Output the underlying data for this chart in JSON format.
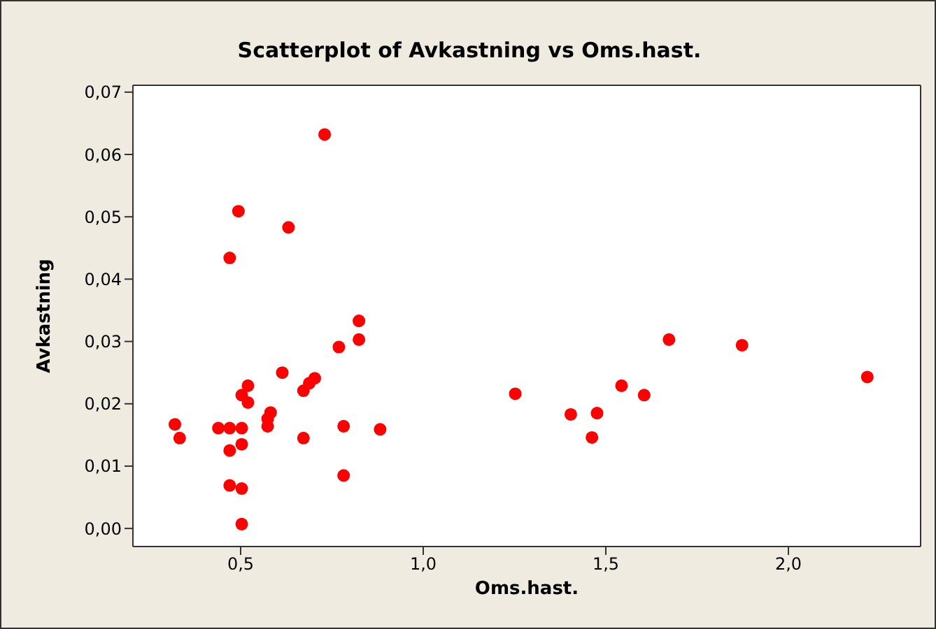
{
  "chart_data": {
    "type": "scatter",
    "title": "Scatterplot of Avkastning vs Oms.hast.",
    "xlabel": "Oms.hast.",
    "ylabel": "Avkastning",
    "series": [
      {
        "color": "#ff0000",
        "x": [
          0.32,
          0.333,
          0.439,
          0.47,
          0.503,
          0.47,
          0.503,
          0.47,
          0.503,
          0.503,
          0.47,
          0.494,
          0.631,
          0.73,
          0.503,
          0.52,
          0.52,
          0.614,
          0.574,
          0.574,
          0.582,
          0.672,
          0.688,
          0.703,
          0.672,
          0.769,
          0.824,
          0.824,
          0.782,
          0.782,
          0.882,
          1.252,
          1.404,
          1.476,
          1.462,
          1.543,
          1.605,
          1.673,
          1.873,
          2.216
        ],
        "values": [
          0.0167,
          0.0145,
          0.0161,
          0.0161,
          0.0161,
          0.0125,
          0.0135,
          0.0069,
          0.0064,
          0.0007,
          0.0434,
          0.0509,
          0.0483,
          0.0632,
          0.0214,
          0.0202,
          0.0229,
          0.025,
          0.0164,
          0.0176,
          0.0186,
          0.0221,
          0.0233,
          0.0241,
          0.0145,
          0.0291,
          0.0333,
          0.0303,
          0.0164,
          0.0085,
          0.0159,
          0.0216,
          0.0183,
          0.0185,
          0.0146,
          0.0229,
          0.0214,
          0.0303,
          0.0294,
          0.0243
        ]
      }
    ],
    "xlim": [
      0.205,
      2.362
    ],
    "ylim": [
      -0.0029,
      0.0711
    ],
    "xticks": [
      {
        "value": 0.5,
        "label": "0,5"
      },
      {
        "value": 1.0,
        "label": "1,0"
      },
      {
        "value": 1.5,
        "label": "1,5"
      },
      {
        "value": 2.0,
        "label": "2,0"
      }
    ],
    "yticks": [
      {
        "value": 0,
        "label": "0,00"
      },
      {
        "value": 0.01,
        "label": "0,01"
      },
      {
        "value": 0.02,
        "label": "0,02"
      },
      {
        "value": 0.03,
        "label": "0,03"
      },
      {
        "value": 0.04,
        "label": "0,04"
      },
      {
        "value": 0.05,
        "label": "0,05"
      },
      {
        "value": 0.06,
        "label": "0,06"
      },
      {
        "value": 0.07,
        "label": "0,07"
      }
    ],
    "marker": "circle"
  }
}
